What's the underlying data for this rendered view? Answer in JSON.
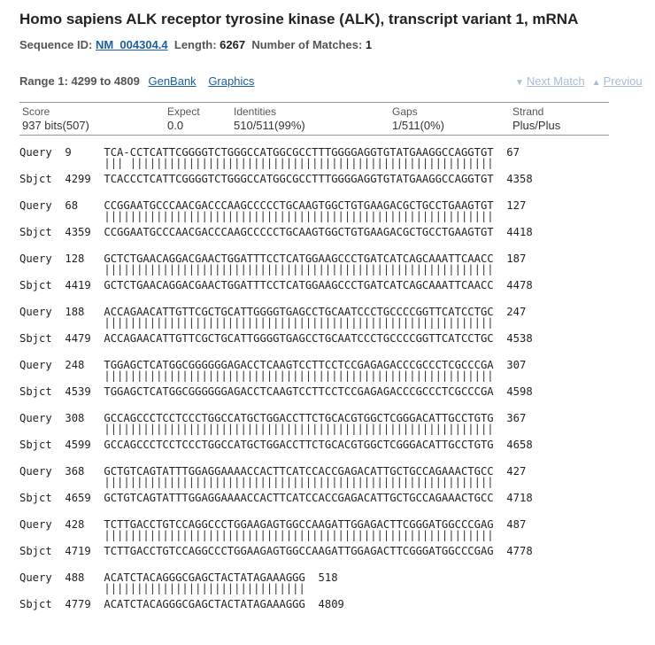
{
  "header": {
    "title": "Homo sapiens ALK receptor tyrosine kinase (ALK), transcript variant 1, mRNA",
    "sequence_id_label": "Sequence ID:",
    "sequence_id": "NM_004304.4",
    "length_label": "Length:",
    "length": "6267",
    "matches_label": "Number of Matches:",
    "matches": "1"
  },
  "range": {
    "label": "Range 1: 4299 to 4809",
    "genbank_link": "GenBank",
    "graphics_link": "Graphics",
    "next_match": "Next Match",
    "previous_match": "Previou"
  },
  "stats": {
    "score_label": "Score",
    "score": "937 bits(507)",
    "expect_label": "Expect",
    "expect": "0.0",
    "identities_label": "Identities",
    "identities": "510/511(99%)",
    "gaps_label": "Gaps",
    "gaps": "1/511(0%)",
    "strand_label": "Strand",
    "strand": "Plus/Plus"
  },
  "alignment": [
    {
      "query": "Query  9     TCA-CCTCATTCGGGGTCTGGGCCATGGCGCCTTTGGGGAGGTGTATGAAGGCCAGGTGT  67",
      "match": "             ||| ||||||||||||||||||||||||||||||||||||||||||||||||||||||||",
      "sbjct": "Sbjct  4299  TCACCCTCATTCGGGGTCTGGGCCATGGCGCCTTTGGGGAGGTGTATGAAGGCCAGGTGT  4358"
    },
    {
      "query": "Query  68    CCGGAATGCCCAACGACCCAAGCCCCCTGCAAGTGGCTGTGAAGACGCTGCCTGAAGTGT  127",
      "match": "             ||||||||||||||||||||||||||||||||||||||||||||||||||||||||||||",
      "sbjct": "Sbjct  4359  CCGGAATGCCCAACGACCCAAGCCCCCTGCAAGTGGCTGTGAAGACGCTGCCTGAAGTGT  4418"
    },
    {
      "query": "Query  128   GCTCTGAACAGGACGAACTGGATTTCCTCATGGAAGCCCTGATCATCAGCAAATTCAACC  187",
      "match": "             ||||||||||||||||||||||||||||||||||||||||||||||||||||||||||||",
      "sbjct": "Sbjct  4419  GCTCTGAACAGGACGAACTGGATTTCCTCATGGAAGCCCTGATCATCAGCAAATTCAACC  4478"
    },
    {
      "query": "Query  188   ACCAGAACATTGTTCGCTGCATTGGGGTGAGCCTGCAATCCCTGCCCCGGTTCATCCTGC  247",
      "match": "             ||||||||||||||||||||||||||||||||||||||||||||||||||||||||||||",
      "sbjct": "Sbjct  4479  ACCAGAACATTGTTCGCTGCATTGGGGTGAGCCTGCAATCCCTGCCCCGGTTCATCCTGC  4538"
    },
    {
      "query": "Query  248   TGGAGCTCATGGCGGGGGGAGACCTCAAGTCCTTCCTCCGAGAGACCCGCCCTCGCCCGA  307",
      "match": "             ||||||||||||||||||||||||||||||||||||||||||||||||||||||||||||",
      "sbjct": "Sbjct  4539  TGGAGCTCATGGCGGGGGGAGACCTCAAGTCCTTCCTCCGAGAGACCCGCCCTCGCCCGA  4598"
    },
    {
      "query": "Query  308   GCCAGCCCTCCTCCCTGGCCATGCTGGACCTTCTGCACGTGGCTCGGGACATTGCCTGTG  367",
      "match": "             ||||||||||||||||||||||||||||||||||||||||||||||||||||||||||||",
      "sbjct": "Sbjct  4599  GCCAGCCCTCCTCCCTGGCCATGCTGGACCTTCTGCACGTGGCTCGGGACATTGCCTGTG  4658"
    },
    {
      "query": "Query  368   GCTGTCAGTATTTGGAGGAAAACCACTTCATCCACCGAGACATTGCTGCCAGAAACTGCC  427",
      "match": "             ||||||||||||||||||||||||||||||||||||||||||||||||||||||||||||",
      "sbjct": "Sbjct  4659  GCTGTCAGTATTTGGAGGAAAACCACTTCATCCACCGAGACATTGCTGCCAGAAACTGCC  4718"
    },
    {
      "query": "Query  428   TCTTGACCTGTCCAGGCCCTGGAAGAGTGGCCAAGATTGGAGACTTCGGGATGGCCCGAG  487",
      "match": "             ||||||||||||||||||||||||||||||||||||||||||||||||||||||||||||",
      "sbjct": "Sbjct  4719  TCTTGACCTGTCCAGGCCCTGGAAGAGTGGCCAAGATTGGAGACTTCGGGATGGCCCGAG  4778"
    },
    {
      "query": "Query  488   ACATCTACAGGGCGAGCTACTATAGAAAGGG  518",
      "match": "             |||||||||||||||||||||||||||||||",
      "sbjct": "Sbjct  4779  ACATCTACAGGGCGAGCTACTATAGAAAGGG  4809"
    }
  ]
}
